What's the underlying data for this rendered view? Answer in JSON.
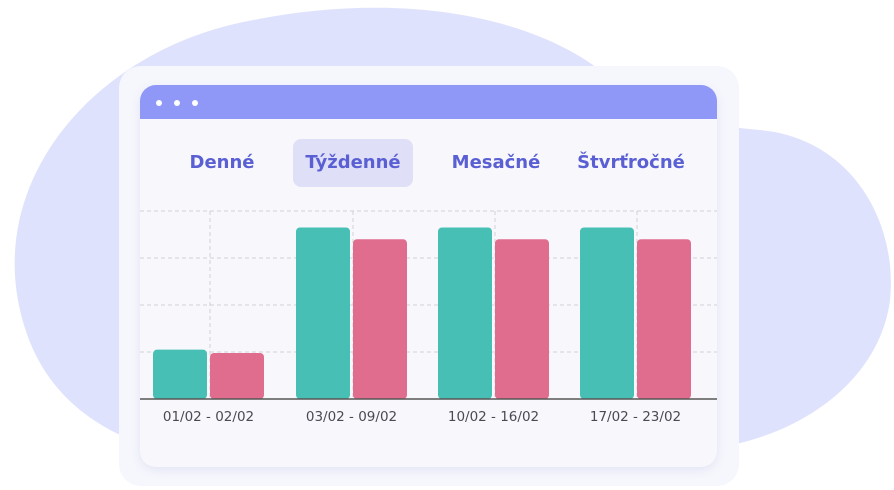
{
  "colors": {
    "background_blob": "#dfe2fc",
    "titlebar": "#8f97f7",
    "tab_text": "#5a60d3",
    "tab_active_bg": "#dfe0f7",
    "series_a": "#48bfb5",
    "series_b": "#e06c8e",
    "grid": "#cfcfd8",
    "axis": "#555555"
  },
  "tabs": [
    {
      "label": "Denné",
      "active": false
    },
    {
      "label": "Týždenné",
      "active": true
    },
    {
      "label": "Mesačné",
      "active": false
    },
    {
      "label": "Štvrťročné",
      "active": false
    }
  ],
  "chart_data": {
    "type": "bar",
    "categories": [
      "01/02 - 02/02",
      "03/02 - 09/02",
      "10/02 - 16/02",
      "17/02 - 23/02"
    ],
    "series": [
      {
        "values": [
          1.05,
          3.65,
          3.65,
          3.65
        ]
      },
      {
        "values": [
          0.98,
          3.4,
          3.4,
          3.4
        ]
      }
    ],
    "ylim": [
      0,
      4
    ],
    "grid": true,
    "legend": "none"
  }
}
